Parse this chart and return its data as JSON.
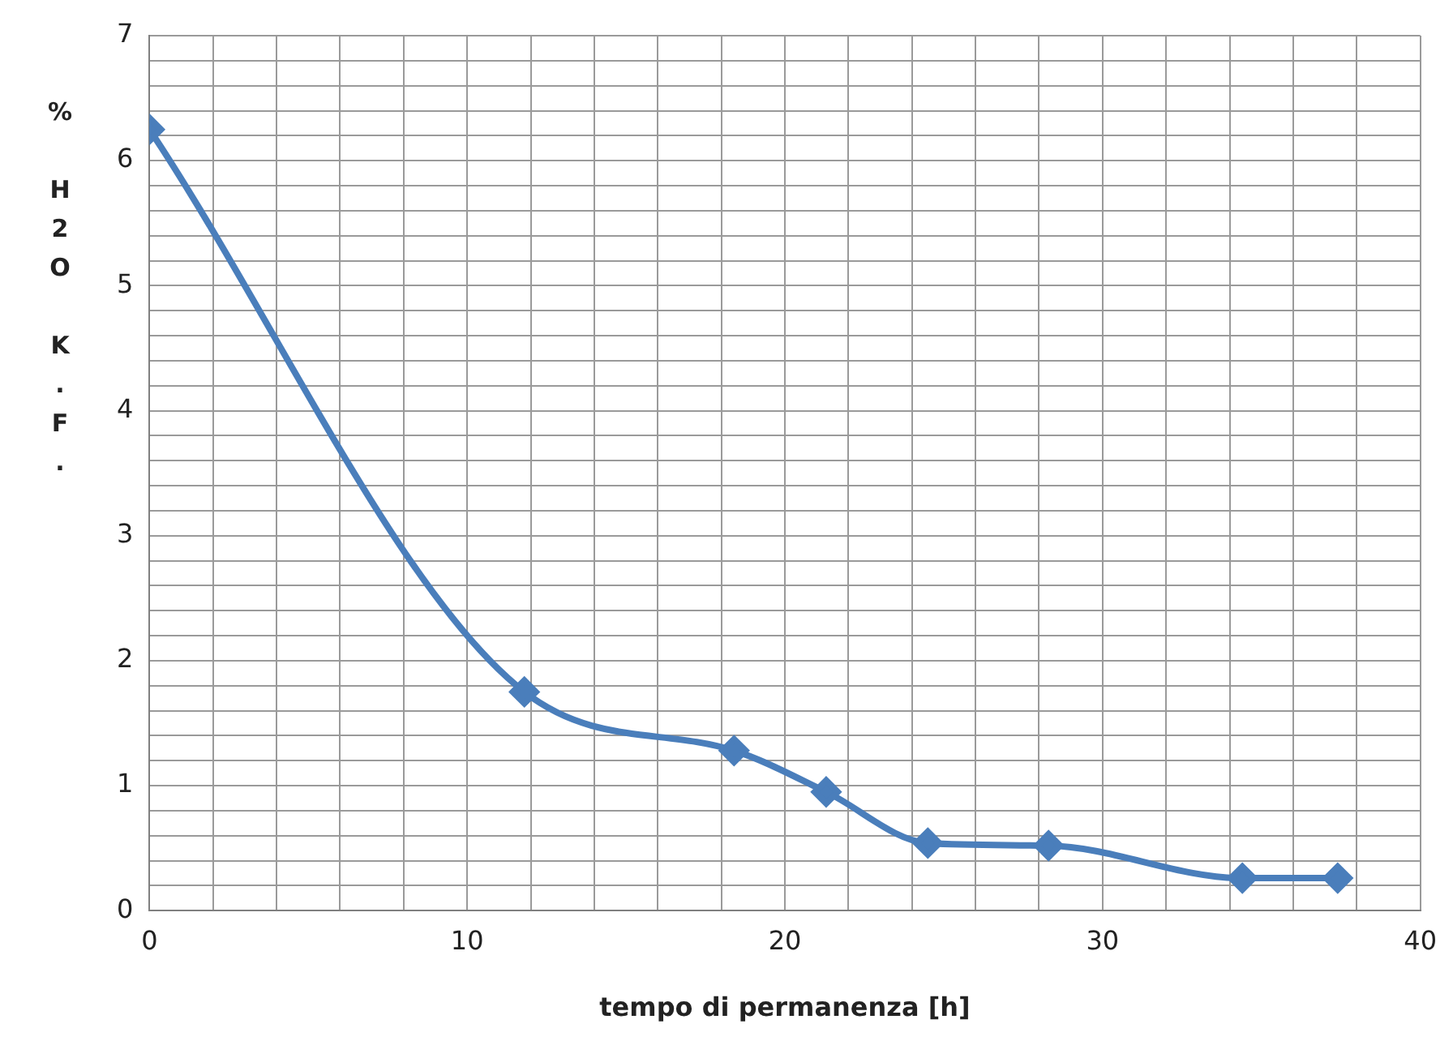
{
  "chart_data": {
    "type": "line",
    "xlabel": "tempo di permanenza [h]",
    "ylabel": "% H2O K.F.",
    "x": [
      0,
      11.8,
      18.4,
      21.3,
      24.5,
      28.3,
      34.4,
      37.4
    ],
    "series": [
      {
        "color": "#4a7ebb",
        "values": [
          6.25,
          1.75,
          1.28,
          0.95,
          0.54,
          0.52,
          0.26,
          0.26
        ]
      }
    ],
    "xlim": [
      0,
      40
    ],
    "xticks": [
      0,
      {
        "value": 2,
        "label": null
      },
      {
        "value": 4,
        "label": null
      },
      {
        "value": 6,
        "label": null
      },
      {
        "value": 8,
        "label": null
      },
      10,
      {
        "value": 12,
        "label": null
      },
      {
        "value": 14,
        "label": null
      },
      {
        "value": 16,
        "label": null
      },
      {
        "value": 18,
        "label": null
      },
      20,
      {
        "value": 22,
        "label": null
      },
      {
        "value": 24,
        "label": null
      },
      {
        "value": 26,
        "label": null
      },
      {
        "value": 28,
        "label": null
      },
      30,
      {
        "value": 32,
        "label": null
      },
      {
        "value": 34,
        "label": null
      },
      {
        "value": 36,
        "label": null
      },
      {
        "value": 38,
        "label": null
      },
      40
    ],
    "ylim": [
      0,
      7
    ],
    "yticks": [
      0,
      {
        "value": 0.2,
        "label": null
      },
      {
        "value": 0.4,
        "label": null
      },
      {
        "value": 0.6,
        "label": null
      },
      {
        "value": 0.8,
        "label": null
      },
      1,
      {
        "value": 1.2,
        "label": null
      },
      {
        "value": 1.4,
        "label": null
      },
      {
        "value": 1.6,
        "label": null
      },
      {
        "value": 1.8,
        "label": null
      },
      2,
      {
        "value": 2.2,
        "label": null
      },
      {
        "value": 2.4,
        "label": null
      },
      {
        "value": 2.6,
        "label": null
      },
      {
        "value": 2.8,
        "label": null
      },
      3,
      {
        "value": 3.2,
        "label": null
      },
      {
        "value": 3.4,
        "label": null
      },
      {
        "value": 3.6,
        "label": null
      },
      {
        "value": 3.8,
        "label": null
      },
      4,
      {
        "value": 4.2,
        "label": null
      },
      {
        "value": 4.4,
        "label": null
      },
      {
        "value": 4.6,
        "label": null
      },
      {
        "value": 4.8,
        "label": null
      },
      5,
      {
        "value": 5.2,
        "label": null
      },
      {
        "value": 5.4,
        "label": null
      },
      {
        "value": 5.6,
        "label": null
      },
      {
        "value": 5.8,
        "label": null
      },
      6,
      {
        "value": 6.2,
        "label": null
      },
      {
        "value": 6.4,
        "label": null
      },
      {
        "value": 6.6,
        "label": null
      },
      {
        "value": 6.8,
        "label": null
      },
      7
    ],
    "grid": true,
    "legend": false,
    "marker": "diamond",
    "line_style": "solid"
  }
}
